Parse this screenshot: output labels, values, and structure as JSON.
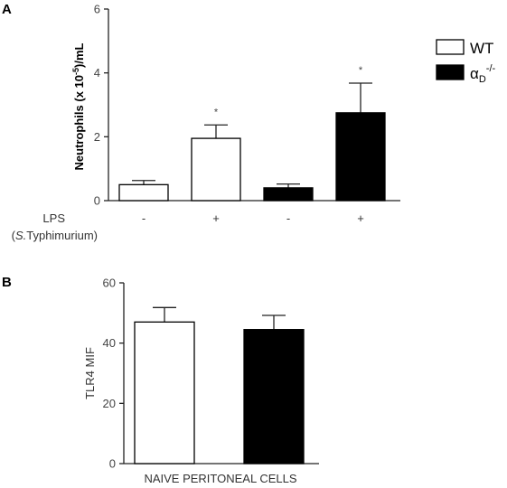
{
  "chart_data": [
    {
      "panel": "A",
      "type": "bar",
      "ylabel": "Neutrophils (x 10",
      "ylabel_sup": "-5",
      "ylabel_tail": ")/mL",
      "ylim": [
        0,
        6
      ],
      "yticks": [
        "0",
        "2",
        "4",
        "6"
      ],
      "row_label": "LPS",
      "row_sublabel_italic": "S.",
      "row_sublabel": "Typhimurium",
      "bars": [
        {
          "group": "WT",
          "lps": "-",
          "value": 0.5,
          "error": 0.13,
          "significant": false
        },
        {
          "group": "WT",
          "lps": "+",
          "value": 1.95,
          "error": 0.42,
          "significant": true
        },
        {
          "group": "aD-/-",
          "lps": "-",
          "value": 0.4,
          "error": 0.12,
          "significant": false
        },
        {
          "group": "aD-/-",
          "lps": "+",
          "value": 2.75,
          "error": 0.93,
          "significant": true
        }
      ],
      "significance_mark": "*",
      "legend": [
        {
          "label": "WT",
          "fill": "#ffffff"
        },
        {
          "label": "α",
          "sub": "D",
          "sup": "-/-",
          "fill": "#000000"
        }
      ]
    },
    {
      "panel": "B",
      "type": "bar",
      "ylabel": "TLR4 MIF",
      "ylim": [
        0,
        60
      ],
      "yticks": [
        "0",
        "20",
        "40",
        "60"
      ],
      "xlabel": "NAIVE PERITONEAL CELLS",
      "bars": [
        {
          "group": "WT",
          "value": 47,
          "error": 4.8,
          "fill": "#ffffff"
        },
        {
          "group": "aD-/-",
          "value": 44.5,
          "error": 4.7,
          "fill": "#000000"
        }
      ]
    }
  ]
}
